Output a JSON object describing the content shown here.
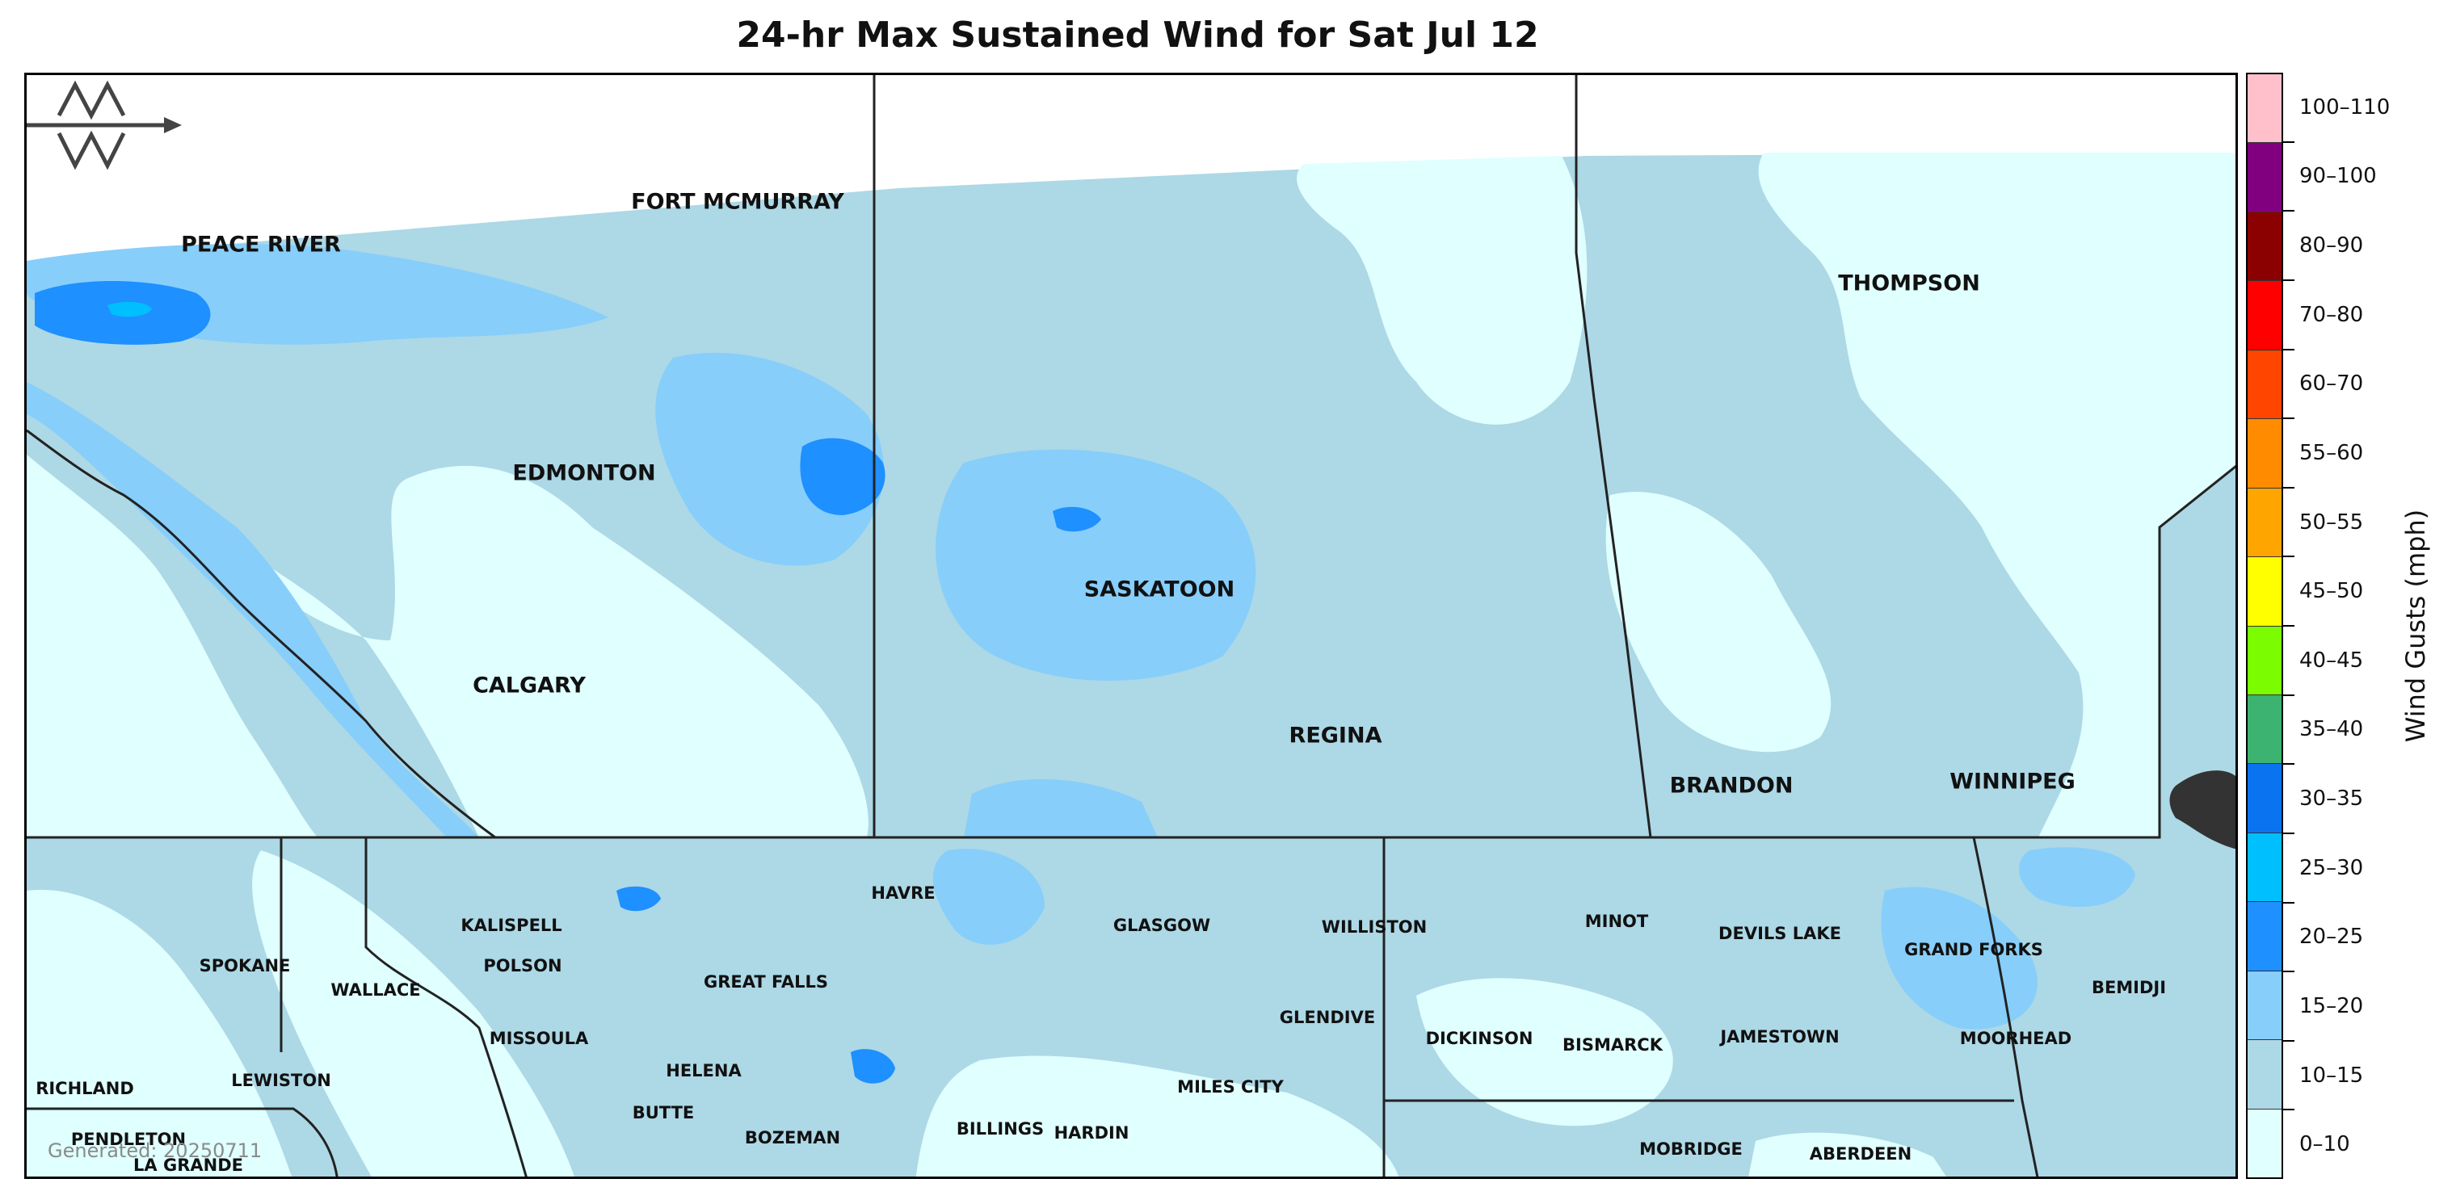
{
  "title": "24-hr Max Sustained Wind for Sat Jul 12",
  "generated": "Generated: 20250711",
  "legend": {
    "title": "Wind Gusts (mph)",
    "bins": [
      {
        "label": "100–110",
        "color": "#ffc0cb"
      },
      {
        "label": "90–100",
        "color": "#800080"
      },
      {
        "label": "80–90",
        "color": "#8b0000"
      },
      {
        "label": "70–80",
        "color": "#ff0000"
      },
      {
        "label": "60–70",
        "color": "#ff4500"
      },
      {
        "label": "55–60",
        "color": "#ff8c00"
      },
      {
        "label": "50–55",
        "color": "#ffa500"
      },
      {
        "label": "45–50",
        "color": "#ffff00"
      },
      {
        "label": "40–45",
        "color": "#7cfc00"
      },
      {
        "label": "35–40",
        "color": "#3cb371"
      },
      {
        "label": "30–35",
        "color": "#0a74f0"
      },
      {
        "label": "25–30",
        "color": "#00bfff"
      },
      {
        "label": "20–25",
        "color": "#1e90ff"
      },
      {
        "label": "15–20",
        "color": "#87cefa"
      },
      {
        "label": "10–15",
        "color": "#add8e6"
      },
      {
        "label": "0–10",
        "color": "#e0ffff"
      }
    ]
  },
  "cities": [
    {
      "name": "PEACE RIVER",
      "size": "big"
    },
    {
      "name": "FORT MCMURRAY",
      "size": "big"
    },
    {
      "name": "EDMONTON",
      "size": "big"
    },
    {
      "name": "CALGARY",
      "size": "big"
    },
    {
      "name": "SASKATOON",
      "size": "big"
    },
    {
      "name": "REGINA",
      "size": "big"
    },
    {
      "name": "THOMPSON",
      "size": "big"
    },
    {
      "name": "BRANDON",
      "size": "big"
    },
    {
      "name": "WINNIPEG",
      "size": "big"
    },
    {
      "name": "HAVRE",
      "size": "small"
    },
    {
      "name": "GLASGOW",
      "size": "small"
    },
    {
      "name": "WILLISTON",
      "size": "small"
    },
    {
      "name": "MINOT",
      "size": "small"
    },
    {
      "name": "DEVILS LAKE",
      "size": "small"
    },
    {
      "name": "GRAND FORKS",
      "size": "small"
    },
    {
      "name": "BEMIDJI",
      "size": "small"
    },
    {
      "name": "KALISPELL",
      "size": "small"
    },
    {
      "name": "POLSON",
      "size": "small"
    },
    {
      "name": "SPOKANE",
      "size": "small"
    },
    {
      "name": "WALLACE",
      "size": "small"
    },
    {
      "name": "GREAT FALLS",
      "size": "small"
    },
    {
      "name": "MISSOULA",
      "size": "small"
    },
    {
      "name": "GLENDIVE",
      "size": "small"
    },
    {
      "name": "DICKINSON",
      "size": "small"
    },
    {
      "name": "BISMARCK",
      "size": "small"
    },
    {
      "name": "JAMESTOWN",
      "size": "small"
    },
    {
      "name": "MOORHEAD",
      "size": "small"
    },
    {
      "name": "HELENA",
      "size": "small"
    },
    {
      "name": "MILES CITY",
      "size": "small"
    },
    {
      "name": "RICHLAND",
      "size": "small"
    },
    {
      "name": "LEWISTON",
      "size": "small"
    },
    {
      "name": "BUTTE",
      "size": "small"
    },
    {
      "name": "PENDLETON",
      "size": "small"
    },
    {
      "name": "BOZEMAN",
      "size": "small"
    },
    {
      "name": "BILLINGS",
      "size": "small"
    },
    {
      "name": "HARDIN",
      "size": "small"
    },
    {
      "name": "MOBRIDGE",
      "size": "small"
    },
    {
      "name": "ABERDEEN",
      "size": "small"
    },
    {
      "name": "LA GRANDE",
      "size": "small"
    }
  ]
}
